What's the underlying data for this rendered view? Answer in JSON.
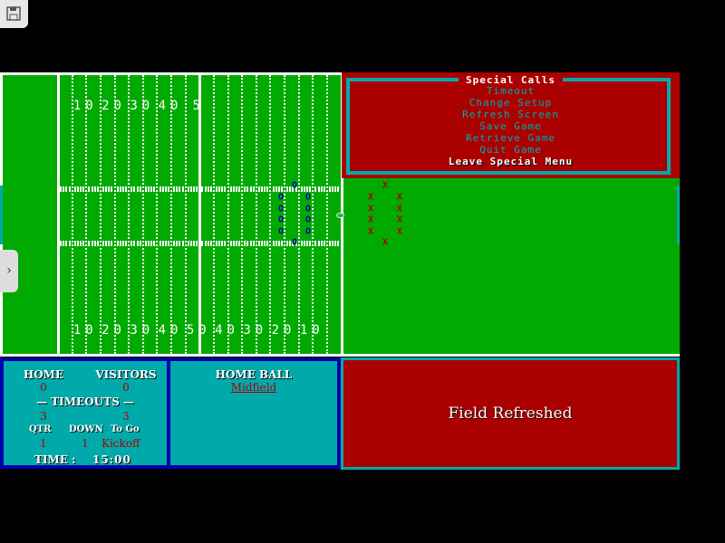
{
  "toolbar": {
    "save_icon": "floppy-disk-icon",
    "side_tab_icon": "chevron-right-icon"
  },
  "field": {
    "top_numbers": [
      "10",
      "20",
      "30",
      "40",
      "5"
    ],
    "bottom_numbers": [
      "10",
      "20",
      "30",
      "40",
      "50",
      "40",
      "30",
      "20",
      "10"
    ],
    "offense_symbol": "O",
    "defense_symbol": "X"
  },
  "menu": {
    "title": "Special Calls",
    "items": [
      "Timeout",
      "Change Setup",
      "Refresh Screen",
      "Save Game",
      "Retrieve Game",
      "Quit Game",
      "Leave Special Menu"
    ],
    "selected": "Leave Special Menu"
  },
  "scoreboard": {
    "home_label": "HOME",
    "visitors_label": "VISITORS",
    "home_score": "0",
    "visitors_score": "0",
    "timeouts_label": "— TIMEOUTS —",
    "home_timeouts": "3",
    "visitors_timeouts": "3",
    "qtr_label": "QTR",
    "down_label": "DOWN",
    "togo_label": "To Go",
    "qtr": "1",
    "down": "1",
    "togo": "Kickoff",
    "time_label": "TIME :",
    "time": "15:00"
  },
  "possession": {
    "label": "HOME BALL",
    "location": "Midfield"
  },
  "message": {
    "text": "Field Refreshed"
  },
  "colors": {
    "field": "#00aa00",
    "red": "#aa0000",
    "teal": "#00aaaa",
    "navy": "#0000aa"
  }
}
